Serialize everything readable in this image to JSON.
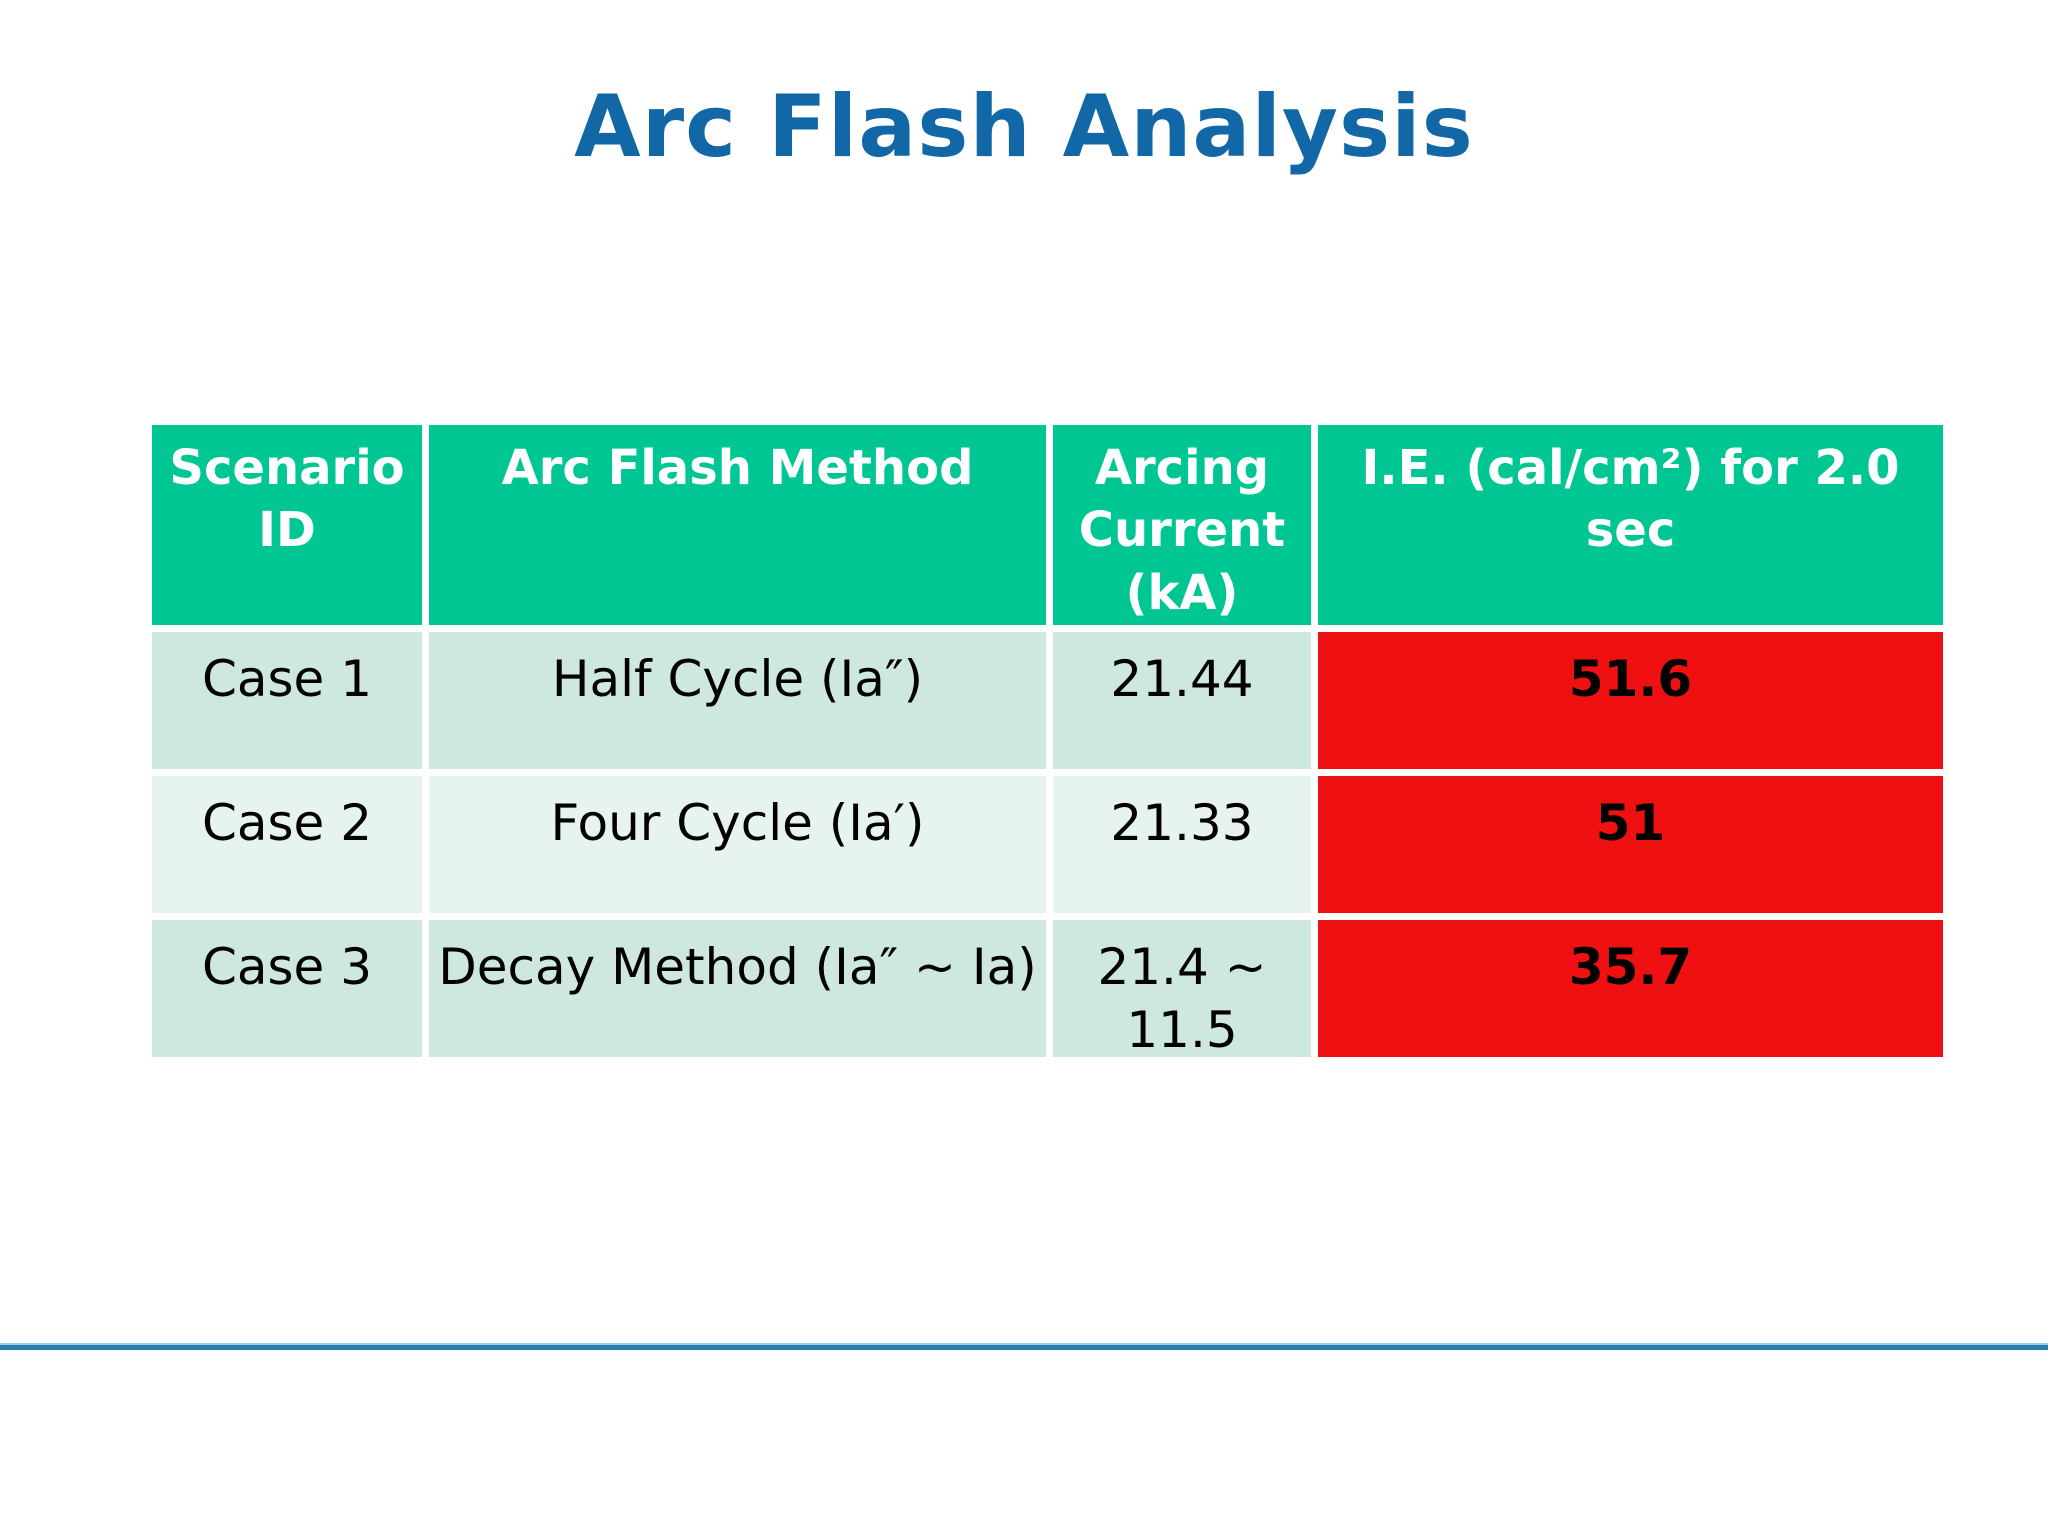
{
  "page": {
    "title": "Arc Flash Analysis"
  },
  "colors": {
    "title_blue": "#1268A6",
    "header_green": "#00C694",
    "row_mint": "#CEE7DF",
    "row_mint_light": "#E7F3EF",
    "alert_red": "#EF1111",
    "footer_line_blue": "#2B7CAD"
  },
  "table": {
    "headers": {
      "scenario_id": "Scenario ID",
      "method": "Arc Flash Method",
      "arcing_current": "Arcing Current (kA)",
      "incident_energy": "I.E. (cal/cm²) for 2.0 sec"
    },
    "rows": [
      {
        "scenario_id": "Case 1",
        "method": "Half Cycle (Ia″)",
        "arcing_current": "21.44",
        "incident_energy": "51.6"
      },
      {
        "scenario_id": "Case 2",
        "method": "Four Cycle (Ia′)",
        "arcing_current": "21.33",
        "incident_energy": "51"
      },
      {
        "scenario_id": "Case 3",
        "method": "Decay Method (Ia″ ~ Ia)",
        "arcing_current": "21.4 ~ 11.5",
        "incident_energy": "35.7"
      }
    ]
  }
}
